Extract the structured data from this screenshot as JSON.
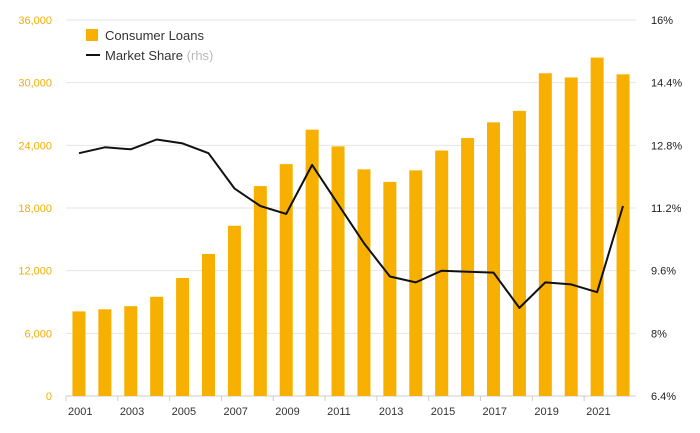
{
  "chart_data": {
    "type": "bar",
    "categories": [
      "2001",
      "2002",
      "2003",
      "2004",
      "2005",
      "2006",
      "2007",
      "2008",
      "2009",
      "2010",
      "2011",
      "2012",
      "2013",
      "2014",
      "2015",
      "2016",
      "2017",
      "2018",
      "2019",
      "2020",
      "2021",
      "2022"
    ],
    "x_tick_labels": [
      "2001",
      "2003",
      "2005",
      "2007",
      "2009",
      "2011",
      "2013",
      "2015",
      "2017",
      "2019",
      "2021"
    ],
    "series": [
      {
        "name": "Consumer Loans",
        "kind": "bar",
        "axis": "left",
        "color": "#f7b000",
        "values": [
          8100,
          8300,
          8600,
          9500,
          11300,
          13600,
          16300,
          20100,
          22200,
          25500,
          23900,
          21700,
          20500,
          21600,
          23500,
          24700,
          26200,
          27300,
          30900,
          30500,
          32400,
          30800
        ]
      },
      {
        "name": "Market Share",
        "name_suffix": "(rhs)",
        "kind": "line",
        "axis": "right",
        "color": "#111111",
        "values": [
          12.6,
          12.75,
          12.7,
          12.95,
          12.85,
          12.6,
          11.7,
          11.25,
          11.05,
          12.3,
          11.3,
          10.3,
          9.45,
          9.3,
          9.6,
          9.57,
          9.55,
          8.65,
          9.3,
          9.25,
          9.05,
          11.25
        ]
      }
    ],
    "y_left": {
      "lim": [
        0,
        36000
      ],
      "ticks": [
        "0",
        "6,000",
        "12,000",
        "18,000",
        "24,000",
        "30,000",
        "36,000"
      ],
      "tick_color": "#f2ae00"
    },
    "y_right": {
      "lim": [
        6.4,
        16.0
      ],
      "ticks": [
        "6.4%",
        "8%",
        "9.6%",
        "11.2%",
        "12.8%",
        "14.4%",
        "16%"
      ]
    },
    "grid": true,
    "legend_position": "top-left"
  }
}
